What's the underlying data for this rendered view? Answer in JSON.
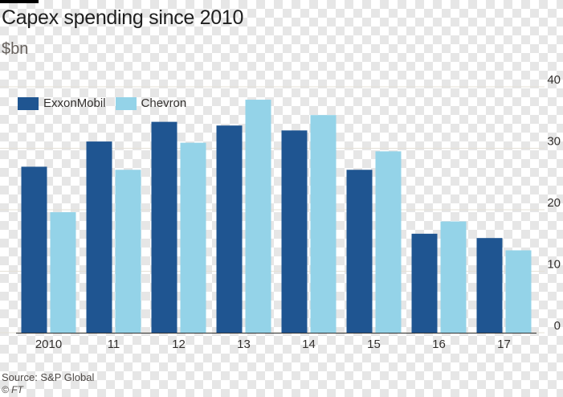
{
  "header": {
    "title": "Capex spending since 2010",
    "subtitle": "$bn"
  },
  "footer": {
    "source": "Source: S&P Global",
    "credit": "© FT"
  },
  "colors": {
    "exxonmobil": "#1f5591",
    "chevron": "#94d3e8",
    "gridline": "#e4e0d6",
    "axis_text": "#33302e"
  },
  "chart_data": {
    "type": "bar",
    "title": "Capex spending since 2010",
    "subtitle": "$bn",
    "categories": [
      "2010",
      "11",
      "12",
      "13",
      "14",
      "15",
      "16",
      "17"
    ],
    "series": [
      {
        "name": "ExxonMobil",
        "values": [
          27.0,
          31.1,
          34.3,
          33.7,
          32.9,
          26.5,
          16.1,
          15.4
        ]
      },
      {
        "name": "Chevron",
        "values": [
          19.6,
          26.5,
          30.9,
          37.9,
          35.4,
          29.5,
          18.1,
          13.4
        ]
      }
    ],
    "ylim": [
      0,
      40
    ],
    "yticks": [
      0,
      10,
      20,
      30,
      40
    ],
    "y_axis_side": "right",
    "grid": true,
    "legend_position": "top-left",
    "xlabel": "",
    "ylabel": ""
  }
}
